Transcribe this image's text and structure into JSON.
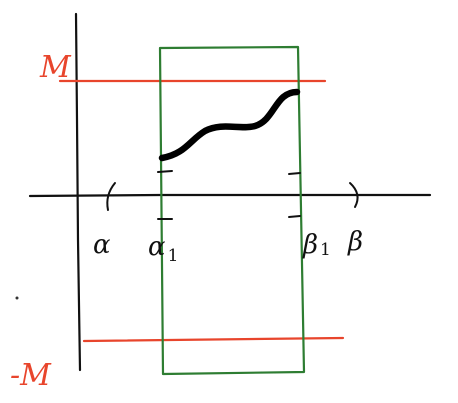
{
  "labels": {
    "upper_bound": "M",
    "lower_bound": "-M",
    "alpha": "α",
    "alpha1_base": "α",
    "alpha1_sub": "1",
    "beta1_base": "β",
    "beta1_sub": "1",
    "beta": "β"
  },
  "colors": {
    "bound_lines": "#e8452c",
    "bound_labels": "#e8452c",
    "subinterval_box": "#2e7d32",
    "axes": "#111111",
    "curve": "#000000"
  }
}
